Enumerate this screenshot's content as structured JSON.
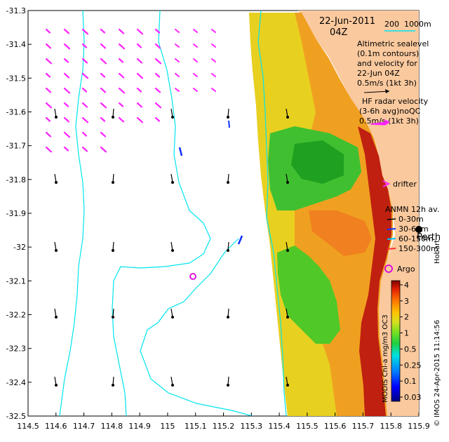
{
  "chart_data": {
    "type": "map",
    "x_axis": {
      "ticks": [
        "114.5",
        "114.6",
        "114.7",
        "114.8",
        "114.9",
        "115",
        "115.1",
        "115.2",
        "115.3",
        "115.4",
        "115.5",
        "115.6",
        "115.7",
        "115.8",
        "115.9"
      ],
      "range": [
        114.5,
        115.9
      ]
    },
    "y_axis": {
      "ticks": [
        "-31.3",
        "-31.4",
        "-31.5",
        "-31.6",
        "-31.7",
        "-31.8",
        "-31.9",
        "-32",
        "-32.1",
        "-32.2",
        "-32.3",
        "-32.4",
        "-32.5"
      ],
      "range": [
        -32.5,
        -31.3
      ]
    },
    "date": "22-Jun-2011",
    "time": "04Z",
    "depth_contour_labels": [
      "200",
      "1000m"
    ],
    "annotation_lines": [
      "Altimetric sealevel",
      "(0.1m contours)",
      "and velocity for",
      "22-Jun 04Z",
      "0.5m/s (1kt 3h)"
    ],
    "hf_radar_lines": [
      "HF radar velocity",
      "(3-6h avg)noQC",
      "0.5m/s (1kt 3h)"
    ],
    "drifter_label": "drifter",
    "anmn_title": "ANMN 12h av.",
    "anmn_depths": [
      "0-30m",
      "30-60m",
      "60-150m",
      "150-300m"
    ],
    "place_labels": [
      "Perth",
      "Hobart"
    ],
    "argo_label": "Argo",
    "colorbar": {
      "label": "MODIS Chl-a mg/m3 OC3",
      "ticks": [
        "4",
        "3",
        "2",
        "1",
        "0.5",
        "0.25",
        "0.1",
        "0.03"
      ]
    },
    "credit": "© IMOS 24-Apr-2015 11:14:56",
    "colors": {
      "land": "#fac99e",
      "contour": "#00e5ee",
      "hf_arrow": "#ff22ff",
      "alt_arrow": "#000000",
      "argo": "#dd00dd"
    }
  }
}
